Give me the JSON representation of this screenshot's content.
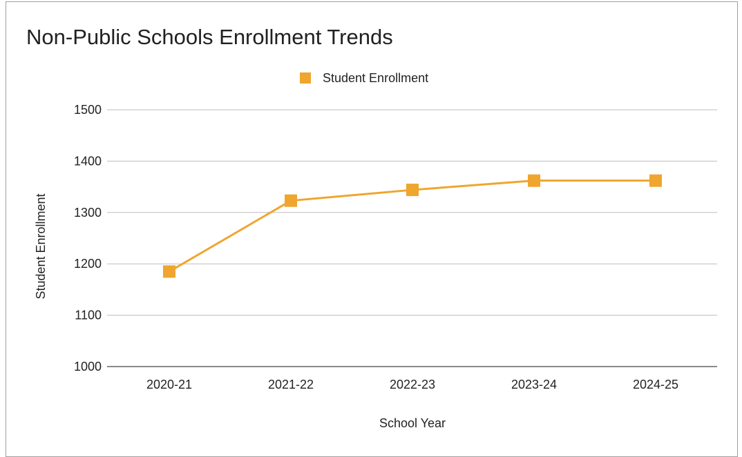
{
  "chart_data": {
    "type": "line",
    "title": "Non-Public Schools Enrollment Trends",
    "xlabel": "School Year",
    "ylabel": "Student Enrollment",
    "categories": [
      "2020-21",
      "2021-22",
      "2022-23",
      "2023-24",
      "2024-25"
    ],
    "series": [
      {
        "name": "Student Enrollment",
        "values": [
          1185,
          1323,
          1344,
          1362,
          1362
        ],
        "color": "#f0a52e",
        "marker": "square"
      }
    ],
    "ylim": [
      1000,
      1500
    ],
    "yticks": [
      1000,
      1100,
      1200,
      1300,
      1400,
      1500
    ],
    "grid": true,
    "legend_position": "top-center"
  },
  "colors": {
    "gridline": "#bdbdbd",
    "axis_line": "#444444",
    "frame": "#9e9e9e"
  }
}
